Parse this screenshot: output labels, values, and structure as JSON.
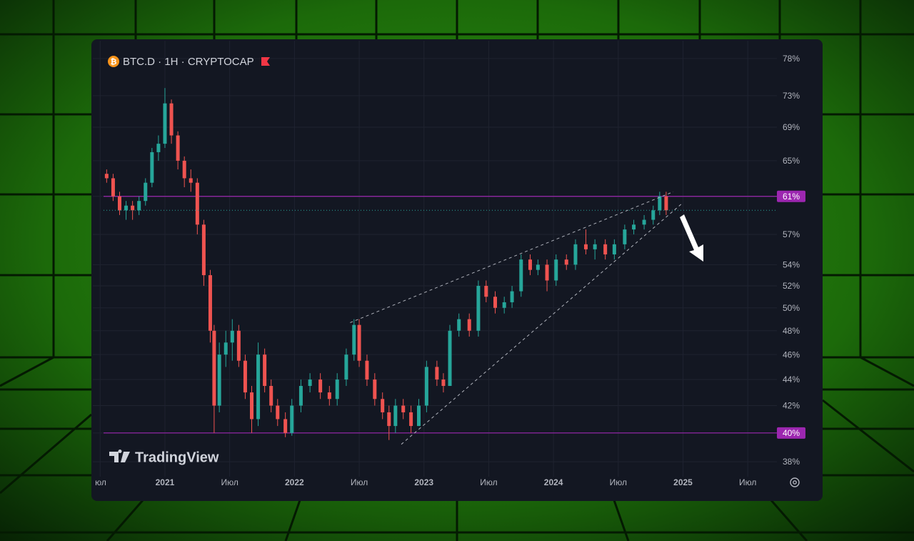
{
  "chart_data": {
    "type": "candlestick",
    "title": "BTC.D · 1H · CRYPTOCAP",
    "brand": "TradingView",
    "log": true,
    "grid": true,
    "up_color": "#26a69a",
    "down_color": "#ef5350",
    "level_color": "#9c27b0",
    "price_line_color": "#26a69a",
    "trendline_color": "#b2b5be",
    "ylim": [
      37,
      80
    ],
    "yticks": [
      {
        "value": 78,
        "label": "78%"
      },
      {
        "value": 73,
        "label": "73%"
      },
      {
        "value": 69,
        "label": "69%"
      },
      {
        "value": 65,
        "label": "65%"
      },
      {
        "value": 61,
        "label": "61%"
      },
      {
        "value": 57,
        "label": "57%"
      },
      {
        "value": 54,
        "label": "54%"
      },
      {
        "value": 52,
        "label": "52%"
      },
      {
        "value": 50,
        "label": "50%"
      },
      {
        "value": 48,
        "label": "48%"
      },
      {
        "value": 46,
        "label": "46%"
      },
      {
        "value": 44,
        "label": "44%"
      },
      {
        "value": 42,
        "label": "42%"
      },
      {
        "value": 40,
        "label": "40%"
      },
      {
        "value": 38,
        "label": "38%"
      }
    ],
    "xlim": [
      2020.526,
      2025.725
    ],
    "xticks": [
      {
        "value": 2020.5,
        "label": "юл"
      },
      {
        "value": 2021,
        "label": "2021"
      },
      {
        "value": 2021.5,
        "label": "Июл"
      },
      {
        "value": 2022,
        "label": "2022"
      },
      {
        "value": 2022.5,
        "label": "Июл"
      },
      {
        "value": 2023,
        "label": "2023"
      },
      {
        "value": 2023.5,
        "label": "Июл"
      },
      {
        "value": 2024,
        "label": "2024"
      },
      {
        "value": 2024.5,
        "label": "Июл"
      },
      {
        "value": 2025,
        "label": "2025"
      },
      {
        "value": 2025.5,
        "label": "Июл"
      }
    ],
    "levels": [
      61,
      40
    ],
    "trendlines": [
      {
        "x": [
          2022.43,
          2024.925
        ],
        "y": [
          48.7,
          61.5
        ]
      },
      {
        "x": [
          2022.825,
          2024.99
        ],
        "y": [
          39.2,
          60.2
        ]
      }
    ],
    "x": [
      2020.55,
      2020.6,
      2020.65,
      2020.7,
      2020.75,
      2020.8,
      2020.85,
      2020.9,
      2020.95,
      2021.0,
      2021.05,
      2021.1,
      2021.15,
      2021.2,
      2021.25,
      2021.3,
      2021.35,
      2021.38,
      2021.42,
      2021.47,
      2021.52,
      2021.57,
      2021.62,
      2021.67,
      2021.72,
      2021.77,
      2021.82,
      2021.87,
      2021.93,
      2021.98,
      2022.05,
      2022.12,
      2022.2,
      2022.27,
      2022.33,
      2022.4,
      2022.46,
      2022.5,
      2022.56,
      2022.62,
      2022.68,
      2022.73,
      2022.78,
      2022.84,
      2022.9,
      2022.96,
      2023.02,
      2023.1,
      2023.15,
      2023.2,
      2023.27,
      2023.35,
      2023.42,
      2023.48,
      2023.55,
      2023.62,
      2023.68,
      2023.75,
      2023.82,
      2023.88,
      2023.95,
      2024.02,
      2024.1,
      2024.17,
      2024.25,
      2024.32,
      2024.4,
      2024.47,
      2024.55,
      2024.62,
      2024.7,
      2024.77,
      2024.82,
      2024.87
    ],
    "open": [
      63.5,
      63,
      61,
      59.5,
      60,
      59.5,
      60.5,
      62.5,
      66,
      67,
      72,
      68,
      65,
      63,
      62.5,
      58,
      53,
      48,
      42,
      46,
      47,
      48,
      45.5,
      43,
      41,
      46,
      43.5,
      42,
      41,
      40,
      42,
      43.5,
      44,
      43,
      42.5,
      44,
      46,
      48.5,
      45.5,
      44,
      42.5,
      41.5,
      40.5,
      42,
      41.5,
      40.5,
      42,
      45,
      44,
      43.5,
      48,
      49,
      48,
      52,
      51,
      50,
      50.5,
      51.5,
      54.5,
      53.5,
      54,
      52.5,
      54.5,
      54,
      56,
      55.5,
      56,
      55,
      56,
      57.5,
      58,
      58.5,
      59.5,
      61
    ],
    "high": [
      64,
      63.5,
      61.5,
      60.5,
      60.5,
      61,
      63,
      66.5,
      68,
      74,
      72.5,
      68.5,
      65.5,
      64,
      63,
      58.5,
      53.5,
      48.5,
      47,
      48,
      49,
      48.5,
      46,
      43.5,
      47,
      46.5,
      44,
      42.5,
      41.5,
      42.5,
      44,
      44.5,
      44.5,
      43.5,
      44.5,
      46.5,
      49,
      49,
      46,
      44.5,
      43,
      42,
      42.5,
      42.5,
      42,
      42.5,
      45.5,
      45.5,
      44.5,
      48.5,
      49.5,
      49.5,
      52.5,
      52.5,
      51.5,
      51,
      52,
      55,
      55,
      54.5,
      54.5,
      55,
      55,
      56.5,
      57.5,
      56.5,
      56.5,
      56.5,
      58,
      58.5,
      59,
      60,
      61.5,
      61.5
    ],
    "low": [
      62.5,
      60.5,
      59,
      58.5,
      58.5,
      59,
      60,
      62,
      65,
      66.5,
      67,
      64,
      62,
      61.5,
      57,
      52,
      47,
      40,
      41.5,
      45,
      45.5,
      45,
      42.5,
      40,
      40.5,
      43,
      41.5,
      40.5,
      39.7,
      39.8,
      41.5,
      43,
      42.5,
      42,
      42,
      43.5,
      45.5,
      45,
      43.5,
      42,
      41,
      39.5,
      40,
      41,
      40,
      40.5,
      41.5,
      43.5,
      43,
      43.5,
      47.5,
      47.5,
      47.5,
      50.5,
      49.5,
      49.5,
      50,
      51,
      53,
      53,
      51.5,
      52,
      53.5,
      53.5,
      55,
      54.5,
      54.5,
      54.5,
      55.5,
      57,
      57.5,
      58,
      59,
      59
    ],
    "close": [
      63,
      61,
      59.5,
      60,
      59.5,
      60.5,
      62.5,
      66,
      67,
      72,
      68,
      65,
      63,
      62.5,
      58,
      53,
      48,
      42,
      46,
      47,
      48,
      45.5,
      43,
      41,
      46,
      43.5,
      42,
      41,
      40,
      42,
      43.5,
      44,
      43,
      42.5,
      44,
      46,
      48.5,
      45.5,
      44,
      42.5,
      41.5,
      40.5,
      42,
      41.5,
      40.5,
      42,
      45,
      44,
      43.5,
      48,
      49,
      48,
      52,
      51,
      50,
      50.5,
      51.5,
      54.5,
      53.5,
      54,
      52.5,
      54.5,
      54,
      56,
      55.5,
      56,
      55,
      56,
      57.5,
      58,
      58.5,
      59.5,
      61,
      59.5
    ]
  }
}
